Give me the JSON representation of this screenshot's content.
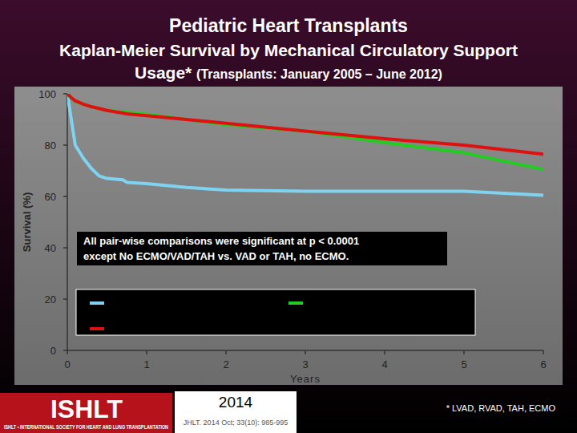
{
  "chart_data": {
    "type": "line",
    "title": "Pediatric Heart Transplants",
    "subtitle": [
      "Kaplan-Meier Survival by Mechanical Circulatory Support",
      "Usage*"
    ],
    "subtitle_note": "(Transplants: January 2005 – June 2012)",
    "xlabel": "Years",
    "ylabel": "Survival (%)",
    "x": [
      0,
      0.05,
      0.1,
      0.2,
      0.3,
      0.4,
      0.5,
      0.7,
      0.75,
      1,
      1.5,
      2,
      3,
      4,
      5,
      6
    ],
    "series": [
      {
        "color": "#7fd3f0",
        "line_style": "solid",
        "values": [
          100,
          90,
          80,
          75,
          71,
          68,
          67,
          66.5,
          65.5,
          65,
          63.5,
          62.5,
          62,
          62,
          62,
          60.5
        ]
      },
      {
        "color": "#22cc22",
        "line_style": "solid",
        "values": [
          100,
          98.5,
          97,
          96,
          95,
          94.3,
          93.5,
          93,
          92.8,
          92,
          90,
          88,
          85.5,
          81,
          77,
          70.5
        ]
      },
      {
        "color": "#e01010",
        "line_style": "solid",
        "values": [
          100,
          98.5,
          97.3,
          96,
          95,
          94.3,
          93.5,
          92.5,
          92.2,
          91.5,
          90,
          88.5,
          85.5,
          82.5,
          80,
          76.5
        ]
      }
    ],
    "xlim": [
      0,
      6
    ],
    "xticks": [
      0,
      1,
      2,
      3,
      4,
      5,
      6
    ],
    "ylim": [
      0,
      100
    ],
    "yticks": [
      0,
      20,
      40,
      60,
      80,
      100
    ],
    "grid": false,
    "legend": "bottom-left",
    "annotation": [
      "All pair-wise comparisons were significant at p < 0.0001",
      "except No ECMO/VAD/TAH vs. VAD or TAH, no ECMO."
    ],
    "footnote": "* LVAD, RVAD, TAH, ECMO",
    "source": {
      "logo": "ISHLT",
      "society": "ISHLT • INTERNATIONAL SOCIETY FOR HEART AND LUNG TRANSPLANTATION",
      "year": "2014",
      "citation": "JHLT. 2014 Oct; 33(10): 985-995"
    }
  }
}
